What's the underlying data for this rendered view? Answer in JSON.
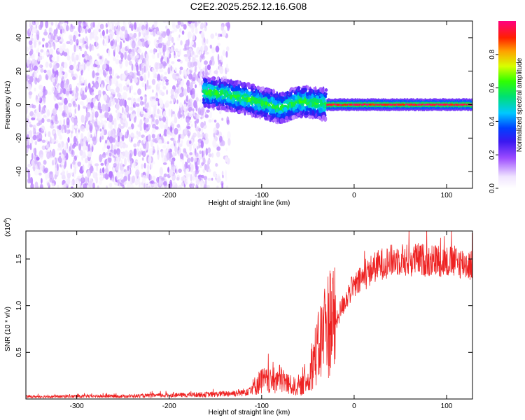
{
  "title": "C2E2.2025.252.12.16.G08",
  "chart_data": [
    {
      "type": "heatmap",
      "name": "spectrogram",
      "xlabel": "Height of straight line (km)",
      "ylabel": "Frequency (Hz)",
      "xlim": [
        -355,
        128
      ],
      "ylim": [
        -50,
        50
      ],
      "xticks": [
        -300,
        -200,
        -100,
        0,
        100
      ],
      "yticks": [
        -40,
        -20,
        0,
        20,
        40
      ],
      "xtick_labels": [
        "-300",
        "-200",
        "-100",
        "0",
        "100"
      ],
      "ytick_labels": [
        "-40",
        "-20",
        "0",
        "20",
        "40"
      ],
      "colorbar": {
        "label": "Normalized spectral amplitude",
        "range": [
          0,
          1
        ],
        "ticks": [
          0.0,
          0.2,
          0.4,
          0.6,
          0.8
        ],
        "tick_labels": [
          "0.0",
          "0.2",
          "0.4",
          "0.6",
          "0.8"
        ]
      },
      "regions": [
        {
          "x_range": [
            -355,
            -135
          ],
          "description_value": "broadband noise",
          "amplitude_range": [
            0.02,
            0.15
          ],
          "freq_range": [
            -50,
            50
          ]
        },
        {
          "x_range": [
            -163,
            -30
          ],
          "center_freq": [
            [
              -163,
              8
            ],
            [
              -140,
              6
            ],
            [
              -120,
              4
            ],
            [
              -100,
              1
            ],
            [
              -80,
              -2
            ],
            [
              -60,
              2
            ],
            [
              -40,
              1
            ],
            [
              -30,
              0
            ]
          ],
          "half_width_hz": 9,
          "amplitude_range": [
            0.2,
            0.55
          ]
        },
        {
          "x_range": [
            -30,
            128
          ],
          "center_freq": [
            [
              -30,
              0
            ],
            [
              128,
              0
            ]
          ],
          "half_width_hz": 3,
          "amplitude_peak": 1.0
        }
      ]
    },
    {
      "type": "line",
      "name": "snr",
      "xlabel": "Height of straight line (km)",
      "ylabel": "SNR (10 * v/v)",
      "scale_note": "(x10",
      "scale_exponent": "4",
      "xlim": [
        -355,
        128
      ],
      "ylim": [
        0,
        18000
      ],
      "xticks": [
        -300,
        -200,
        -100,
        0,
        100
      ],
      "yticks": [
        5000,
        10000,
        15000
      ],
      "xtick_labels": [
        "-300",
        "-200",
        "-100",
        "0",
        "100"
      ],
      "ytick_labels": [
        "0.5",
        "1.0",
        "1.5"
      ],
      "color": "#ee2222",
      "envelope": {
        "x": [
          -355,
          -300,
          -250,
          -200,
          -150,
          -120,
          -110,
          -100,
          -90,
          -80,
          -70,
          -60,
          -50,
          -45,
          -40,
          -35,
          -30,
          -25,
          -20,
          -15,
          -10,
          -5,
          0,
          10,
          20,
          30,
          40,
          50,
          60,
          70,
          80,
          90,
          100,
          110,
          120,
          128
        ],
        "mean": [
          250,
          280,
          300,
          400,
          500,
          700,
          1200,
          2000,
          1800,
          2200,
          1500,
          1200,
          2000,
          4000,
          5000,
          6500,
          7500,
          9000,
          8000,
          9500,
          10500,
          11500,
          12000,
          13000,
          14000,
          14500,
          14800,
          15000,
          14800,
          15000,
          14800,
          14900,
          14700,
          14700,
          14500,
          14300
        ]
      }
    }
  ]
}
